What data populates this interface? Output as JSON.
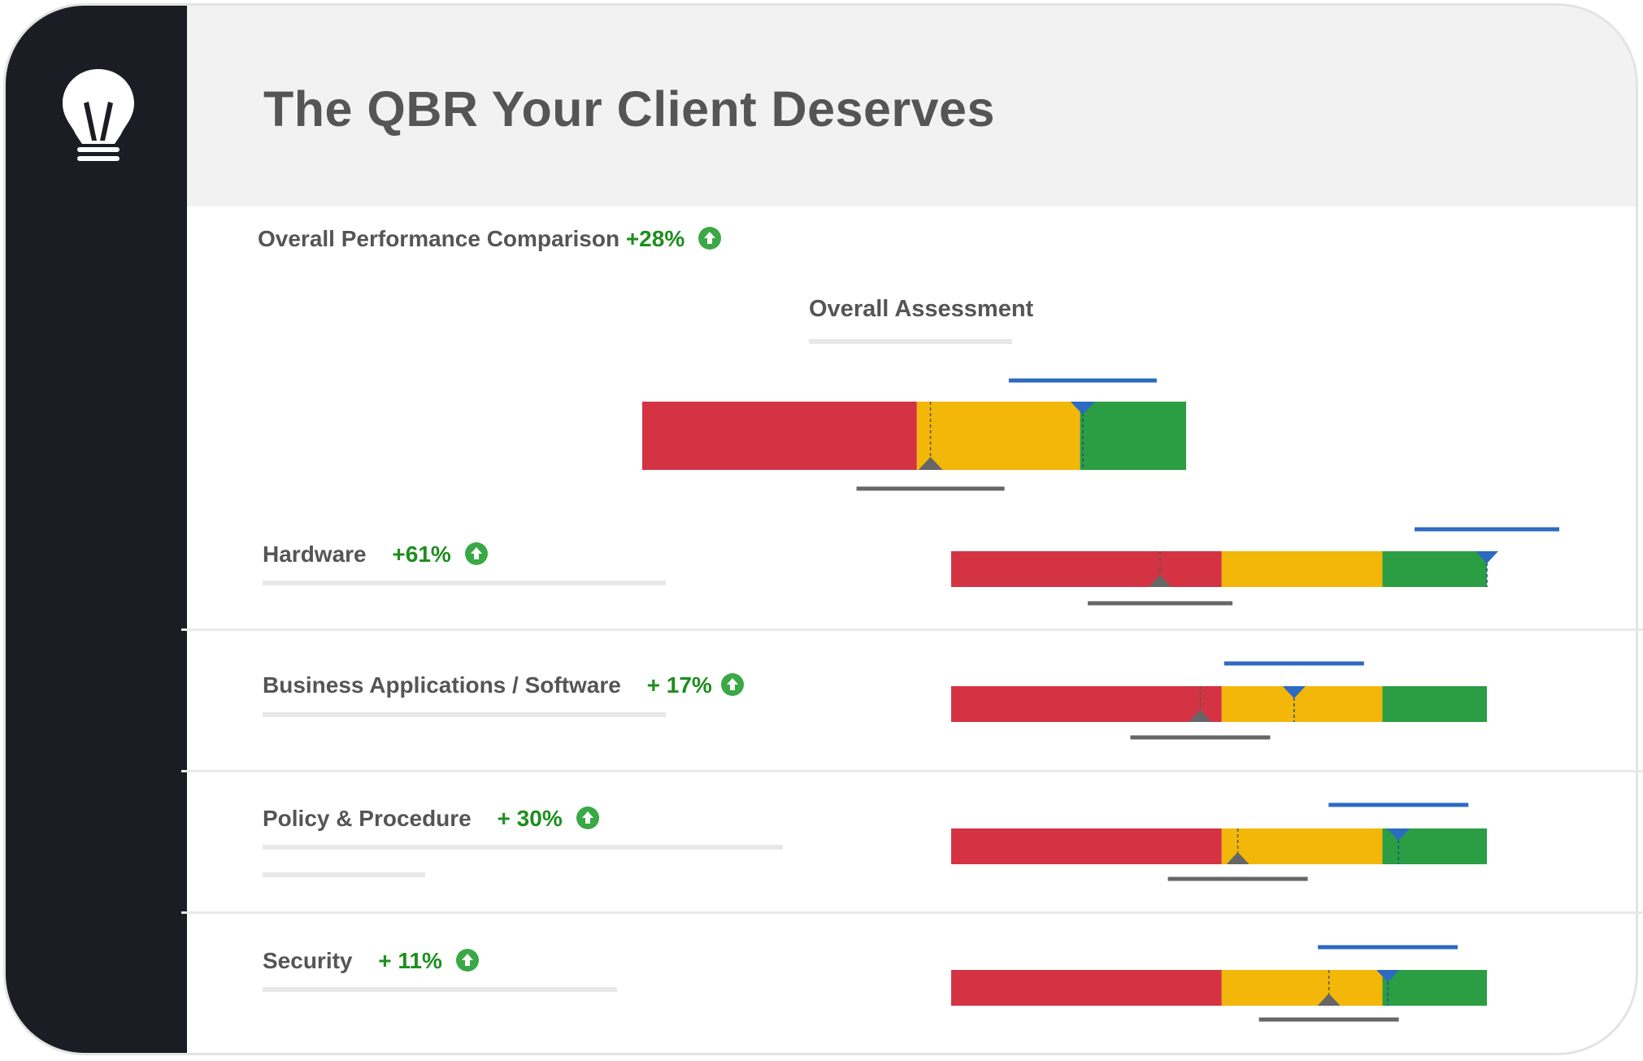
{
  "header": {
    "title": "The QBR Your Client Deserves"
  },
  "section": {
    "label": "Overall Performance Comparison",
    "delta": "+28%"
  },
  "overall": {
    "label": "Overall Assessment"
  },
  "rows": [
    {
      "label": "Hardware",
      "delta": "+61%"
    },
    {
      "label": "Business Applications / Software",
      "delta": "+ 17%"
    },
    {
      "label": "Policy & Procedure",
      "delta": "+ 30%"
    },
    {
      "label": "Security",
      "delta": "+ 11%"
    }
  ],
  "icons": {
    "logo": "lightbulb-icon",
    "trend": "arrow-up-circle-icon"
  },
  "colors": {
    "sidebar": "#1c1c24",
    "red": "#d33343",
    "yellow": "#f3b70a",
    "green": "#2b9e44",
    "blue_marker": "#2d6ac1",
    "gray_marker": "#666666",
    "delta_text": "#1e8e1e",
    "up_icon": "#3aa845"
  },
  "chart_data": {
    "type": "bullet",
    "note_bands": [
      "red",
      "yellow",
      "green"
    ],
    "gauges": [
      {
        "name": "Overall Assessment",
        "bands": [
          0.505,
          0.805,
          1.0
        ],
        "previous": 0.53,
        "current": 0.81
      },
      {
        "name": "Hardware",
        "bands": [
          0.505,
          0.805,
          1.0
        ],
        "previous": 0.39,
        "current": 1.0
      },
      {
        "name": "Business Applications / Software",
        "bands": [
          0.505,
          0.805,
          1.0
        ],
        "previous": 0.465,
        "current": 0.64
      },
      {
        "name": "Policy & Procedure",
        "bands": [
          0.505,
          0.805,
          1.0
        ],
        "previous": 0.535,
        "current": 0.835
      },
      {
        "name": "Security",
        "bands": [
          0.505,
          0.805,
          1.0
        ],
        "previous": 0.705,
        "current": 0.815
      }
    ]
  }
}
